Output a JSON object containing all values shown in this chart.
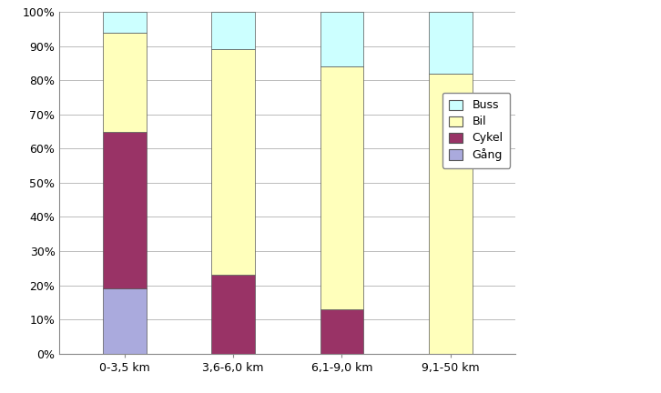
{
  "categories": [
    "0-3,5 km",
    "3,6-6,0 km",
    "6,1-9,0 km",
    "9,1-50 km"
  ],
  "series": {
    "Gång": [
      19,
      0,
      0,
      0
    ],
    "Cykel": [
      46,
      23,
      13,
      0
    ],
    "Bil": [
      29,
      66,
      71,
      82
    ],
    "Buss": [
      6,
      11,
      16,
      18
    ]
  },
  "colors": {
    "Gång": "#aaaadd",
    "Cykel": "#993366",
    "Bil": "#ffffbb",
    "Buss": "#ccffff"
  },
  "legend_order": [
    "Buss",
    "Bil",
    "Cykel",
    "Gång"
  ],
  "ylim": [
    0,
    100
  ],
  "ytick_labels": [
    "0%",
    "10%",
    "20%",
    "30%",
    "40%",
    "50%",
    "60%",
    "70%",
    "80%",
    "90%",
    "100%"
  ],
  "ytick_values": [
    0,
    10,
    20,
    30,
    40,
    50,
    60,
    70,
    80,
    90,
    100
  ],
  "bar_width": 0.4,
  "background_color": "#ffffff",
  "grid_color": "#bbbbbb",
  "edge_color": "#555555",
  "spine_color": "#888888",
  "tick_fontsize": 9,
  "legend_fontsize": 9
}
